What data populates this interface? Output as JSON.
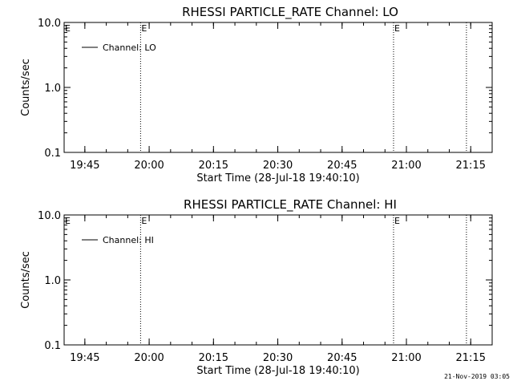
{
  "footer_timestamp": "21-Nov-2019 03:05",
  "chart_data": [
    {
      "type": "line",
      "title": "RHESSI PARTICLE_RATE Channel: LO",
      "xlabel": "Start Time (28-Jul-18 19:40:10)",
      "ylabel": "Counts/sec",
      "yscale": "log",
      "ylim": [
        0.1,
        10.0
      ],
      "yticks": [
        "0.1",
        "1.0",
        "10.0"
      ],
      "xlim": [
        "19:40:10",
        "21:20"
      ],
      "xticks": [
        "19:45",
        "20:00",
        "20:15",
        "20:30",
        "20:45",
        "21:00",
        "21:15"
      ],
      "legend": {
        "placement": "top-left",
        "entries": [
          "Channel: LO"
        ]
      },
      "series": [
        {
          "name": "Channel: LO",
          "x": [],
          "values": []
        }
      ],
      "vertical_markers": [
        {
          "time": "19:58",
          "label": "E"
        },
        {
          "time": "20:57",
          "label": "E"
        },
        {
          "time": "21:14",
          "label": ""
        }
      ],
      "extra_annotations": [
        {
          "label": "E",
          "at": "left-edge-top"
        }
      ],
      "grid": false
    },
    {
      "type": "line",
      "title": "RHESSI PARTICLE_RATE Channel: HI",
      "xlabel": "Start Time (28-Jul-18 19:40:10)",
      "ylabel": "Counts/sec",
      "yscale": "log",
      "ylim": [
        0.1,
        10.0
      ],
      "yticks": [
        "0.1",
        "1.0",
        "10.0"
      ],
      "xlim": [
        "19:40:10",
        "21:20"
      ],
      "xticks": [
        "19:45",
        "20:00",
        "20:15",
        "20:30",
        "20:45",
        "21:00",
        "21:15"
      ],
      "legend": {
        "placement": "top-left",
        "entries": [
          "Channel: HI"
        ]
      },
      "series": [
        {
          "name": "Channel: HI",
          "x": [],
          "values": []
        }
      ],
      "vertical_markers": [
        {
          "time": "19:58",
          "label": "E"
        },
        {
          "time": "20:57",
          "label": "E"
        },
        {
          "time": "21:14",
          "label": ""
        }
      ],
      "extra_annotations": [
        {
          "label": "E",
          "at": "left-edge-top"
        }
      ],
      "grid": false
    }
  ]
}
